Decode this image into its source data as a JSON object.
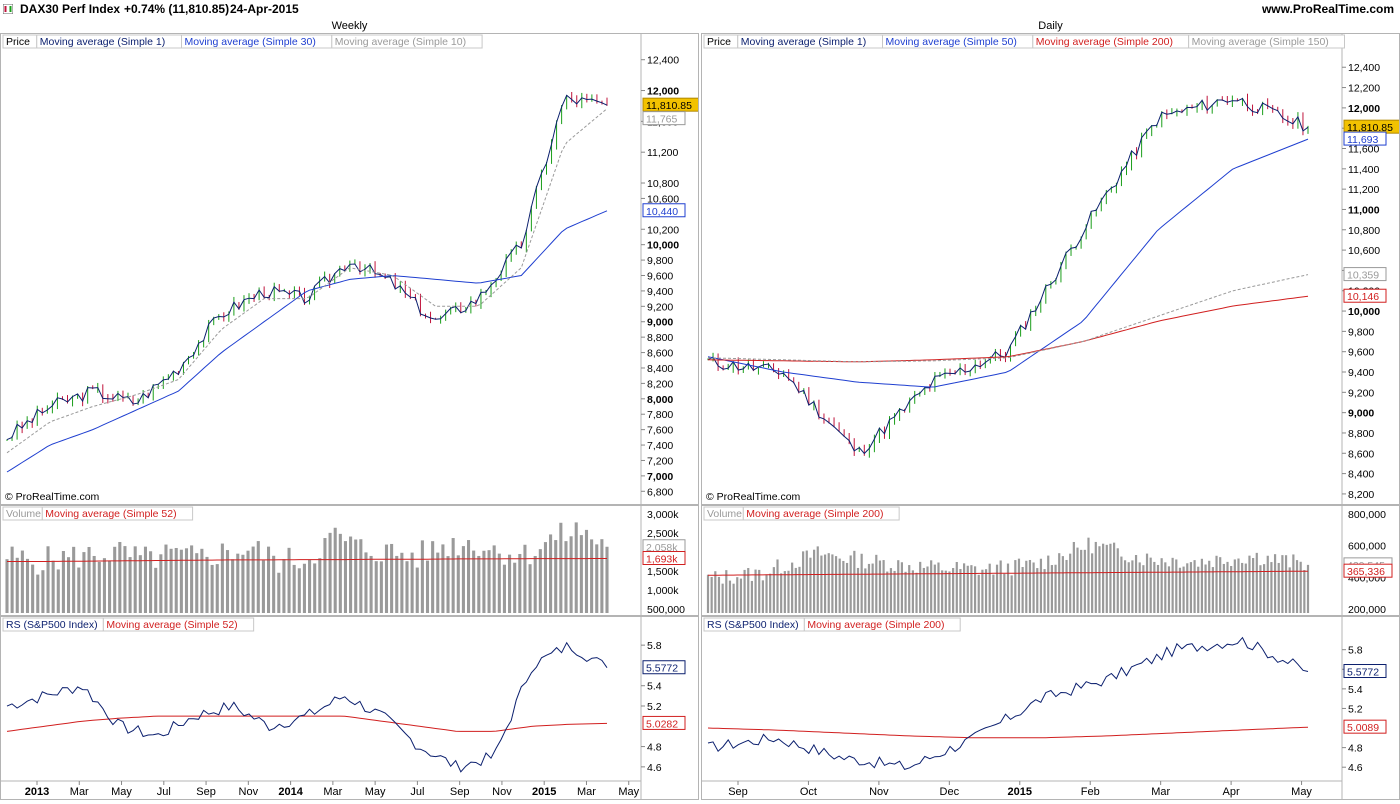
{
  "header": {
    "instrument": "DAX30 Perf Index",
    "change": "+0.74% (11,810.85)",
    "date": "24-Apr-2015",
    "website": "www.ProRealTime.com",
    "logo_icon": "prorealtime-logo-icon"
  },
  "colors": {
    "price_ma1": "#0b1f6e",
    "ma_blue": "#1f3fd0",
    "ma_red": "#d11f1f",
    "ma_grey": "#9a9a9a",
    "up_candle": "#1a9e1a",
    "down_candle": "#c0143c",
    "current_badge": "#f2c200",
    "volume_bar": "#9a9a9a",
    "rs_line": "#0b1f6e"
  },
  "charts": {
    "weekly": {
      "title": "Weekly",
      "watermark": "© ProRealTime.com",
      "price": {
        "legend": [
          {
            "label": "Price",
            "color": "#000000"
          },
          {
            "label": "Moving average (Simple 1)",
            "color": "#0b1f6e"
          },
          {
            "label": "Moving average (Simple 30)",
            "color": "#1f3fd0"
          },
          {
            "label": "Moving average (Simple 10)",
            "color": "#9a9a9a"
          }
        ],
        "ticks": [
          "12,400",
          "12,000",
          "11,600",
          "11,200",
          "10,800",
          "10,600",
          "10,200",
          "10,000",
          "9,800",
          "9,600",
          "9,400",
          "9,200",
          "9,000",
          "8,800",
          "8,600",
          "8,400",
          "8,200",
          "8,000",
          "7,800",
          "7,600",
          "7,400",
          "7,200",
          "7,000",
          "6,800"
        ],
        "ticks_bold": [
          "12,000",
          "10,000",
          "9,000",
          "8,000",
          "7,000"
        ],
        "current_label": "11,810.85",
        "ma_labels": [
          {
            "text": "11,765",
            "value": 11765,
            "color": "#9a9a9a"
          },
          {
            "text": "10,440",
            "value": 10440,
            "color": "#1f3fd0"
          }
        ]
      },
      "volume": {
        "legend": [
          {
            "label": "Volume",
            "color": "#9a9a9a"
          },
          {
            "label": "Moving average (Simple 52)",
            "color": "#d11f1f"
          }
        ],
        "ticks": [
          "3,000k",
          "2,500k",
          "2,000k",
          "1,500k",
          "1,000k",
          "500,000"
        ],
        "labels": [
          {
            "text": "2,058k",
            "value": 2058,
            "color": "#9a9a9a"
          },
          {
            "text": "1,693k",
            "value": 1693,
            "color": "#d11f1f"
          }
        ]
      },
      "rs": {
        "legend": [
          {
            "label": "RS (S&P500 Index)",
            "color": "#0b1f6e"
          },
          {
            "label": "Moving average (Simple 52)",
            "color": "#d11f1f"
          }
        ],
        "ticks": [
          "5.8",
          "5.4",
          "5.2",
          "4.8",
          "4.6"
        ],
        "labels": [
          {
            "text": "5.5772",
            "value": 5.5772,
            "color": "#0b1f6e"
          },
          {
            "text": "5.0282",
            "value": 5.0282,
            "color": "#d11f1f"
          }
        ]
      },
      "x_labels": [
        {
          "text": "2013",
          "bold": true
        },
        {
          "text": "Mar"
        },
        {
          "text": "May"
        },
        {
          "text": "Jul"
        },
        {
          "text": "Sep"
        },
        {
          "text": "Nov"
        },
        {
          "text": "2014",
          "bold": true
        },
        {
          "text": "Mar"
        },
        {
          "text": "May"
        },
        {
          "text": "Jul"
        },
        {
          "text": "Sep"
        },
        {
          "text": "Nov"
        },
        {
          "text": "2015",
          "bold": true
        },
        {
          "text": "Mar"
        },
        {
          "text": "May"
        }
      ]
    },
    "daily": {
      "title": "Daily",
      "watermark": "© ProRealTime.com",
      "price": {
        "legend": [
          {
            "label": "Price",
            "color": "#000000"
          },
          {
            "label": "Moving average (Simple 1)",
            "color": "#0b1f6e"
          },
          {
            "label": "Moving average (Simple 50)",
            "color": "#1f3fd0"
          },
          {
            "label": "Moving average (Simple 200)",
            "color": "#d11f1f"
          },
          {
            "label": "Moving average (Simple 150)",
            "color": "#9a9a9a"
          }
        ],
        "ticks": [
          "12,400",
          "12,200",
          "12,000",
          "11,800",
          "11,600",
          "11,400",
          "11,200",
          "11,000",
          "10,800",
          "10,600",
          "10,400",
          "10,200",
          "10,000",
          "9,800",
          "9,600",
          "9,400",
          "9,200",
          "9,000",
          "8,800",
          "8,600",
          "8,400",
          "8,200"
        ],
        "ticks_bold": [
          "12,000",
          "11,000",
          "10,000",
          "9,000"
        ],
        "current_label": "11,810.85",
        "ma_labels": [
          {
            "text": "11,693",
            "value": 11693,
            "color": "#1f3fd0"
          },
          {
            "text": "10,359",
            "value": 10359,
            "color": "#9a9a9a"
          },
          {
            "text": "10,146",
            "value": 10146,
            "color": "#d11f1f"
          }
        ]
      },
      "volume": {
        "legend": [
          {
            "label": "Volume",
            "color": "#9a9a9a"
          },
          {
            "label": "Moving average (Simple 200)",
            "color": "#d11f1f"
          }
        ],
        "ticks": [
          "800,000",
          "600,000",
          "400,000",
          "200,000"
        ],
        "labels": [
          {
            "text": "420,545",
            "value": 420545,
            "color": "#9a9a9a"
          },
          {
            "text": "365,336",
            "value": 365336,
            "color": "#d11f1f"
          }
        ]
      },
      "rs": {
        "legend": [
          {
            "label": "RS (S&P500 Index)",
            "color": "#0b1f6e"
          },
          {
            "label": "Moving average (Simple 200)",
            "color": "#d11f1f"
          }
        ],
        "ticks": [
          "5.8",
          "5.6",
          "5.4",
          "5.2",
          "4.8",
          "4.6"
        ],
        "labels": [
          {
            "text": "5.5772",
            "value": 5.5772,
            "color": "#0b1f6e"
          },
          {
            "text": "5.0089",
            "value": 5.0089,
            "color": "#d11f1f"
          }
        ]
      },
      "x_labels": [
        {
          "text": "Sep"
        },
        {
          "text": "Oct"
        },
        {
          "text": "Nov"
        },
        {
          "text": "Dec"
        },
        {
          "text": "2015",
          "bold": true
        },
        {
          "text": "Feb"
        },
        {
          "text": "Mar"
        },
        {
          "text": "Apr"
        },
        {
          "text": "May"
        }
      ]
    }
  },
  "chart_data": [
    {
      "type": "line",
      "title": "Weekly",
      "x": [
        "2013-01",
        "2013-03",
        "2013-05",
        "2013-07",
        "2013-09",
        "2013-11",
        "2014-01",
        "2014-03",
        "2014-05",
        "2014-07",
        "2014-09",
        "2014-11",
        "2015-01",
        "2015-03",
        "2015-04"
      ],
      "series": [
        {
          "name": "Moving average (Simple 1)",
          "values": [
            7500,
            7900,
            8100,
            7950,
            8400,
            9100,
            9400,
            9300,
            9800,
            9500,
            9000,
            9300,
            10000,
            11900,
            11810
          ]
        },
        {
          "name": "Moving average (Simple 30)",
          "values": [
            7050,
            7400,
            7600,
            7850,
            8100,
            8600,
            9000,
            9400,
            9550,
            9600,
            9550,
            9500,
            9600,
            10200,
            10440
          ]
        },
        {
          "name": "Moving average (Simple 10)",
          "values": [
            7300,
            7700,
            7900,
            8050,
            8250,
            8900,
            9300,
            9300,
            9700,
            9600,
            9200,
            9200,
            9700,
            11300,
            11765
          ]
        }
      ],
      "ylim": [
        6700,
        12500
      ]
    },
    {
      "type": "bar",
      "title": "Weekly Volume",
      "values": [
        1750,
        1600,
        1700,
        1800,
        1900,
        1650,
        1800,
        1700,
        1900,
        2000,
        1600,
        1700,
        2400,
        2000,
        1900,
        1750,
        2100,
        2200,
        1950,
        1800,
        2300,
        2600,
        2058
      ],
      "ma": [
        1600,
        1600,
        1610,
        1620,
        1630,
        1640,
        1650,
        1650,
        1660,
        1660,
        1670,
        1670,
        1680,
        1680,
        1690,
        1690,
        1693
      ],
      "ylim": [
        0,
        3200000
      ]
    },
    {
      "type": "line",
      "title": "Weekly RS (S&P500 Index)",
      "series": [
        {
          "name": "RS (S&P500 Index)",
          "values": [
            5.2,
            5.3,
            5.4,
            5.0,
            4.9,
            5.1,
            5.2,
            5.0,
            5.1,
            5.3,
            5.1,
            4.8,
            4.6,
            4.7,
            5.6,
            5.8,
            5.5772
          ]
        },
        {
          "name": "Moving average (Simple 52)",
          "values": [
            4.95,
            5.0,
            5.05,
            5.08,
            5.1,
            5.1,
            5.1,
            5.1,
            5.1,
            5.1,
            5.05,
            5.0,
            4.95,
            4.95,
            5.0,
            5.02,
            5.0282
          ]
        }
      ],
      "ylim": [
        4.5,
        5.9
      ]
    },
    {
      "type": "line",
      "title": "Daily",
      "x": [
        "2014-09",
        "2014-10",
        "2014-11",
        "2014-12",
        "2015-01",
        "2015-02",
        "2015-03",
        "2015-04",
        "2015-04-24"
      ],
      "series": [
        {
          "name": "Moving average (Simple 1)",
          "values": [
            9500,
            9400,
            8600,
            9300,
            9600,
            10800,
            11900,
            12100,
            11810
          ]
        },
        {
          "name": "Moving average (Simple 50)",
          "values": [
            9550,
            9400,
            9300,
            9250,
            9400,
            9900,
            10800,
            11400,
            11693
          ]
        },
        {
          "name": "Moving average (Simple 200)",
          "values": [
            9520,
            9510,
            9500,
            9520,
            9550,
            9700,
            9900,
            10050,
            10146
          ]
        },
        {
          "name": "Moving average (Simple 150)",
          "values": [
            9540,
            9520,
            9500,
            9510,
            9540,
            9700,
            9950,
            10200,
            10359
          ]
        }
      ],
      "ylim": [
        8150,
        12550
      ]
    },
    {
      "type": "bar",
      "title": "Daily Volume",
      "values": [
        300000,
        350000,
        520000,
        450000,
        400000,
        380000,
        420000,
        600000,
        480000,
        450000,
        500000,
        420545
      ],
      "ma": [
        330000,
        335000,
        340000,
        345000,
        350000,
        355000,
        360000,
        365336
      ],
      "ylim": [
        0,
        900000
      ]
    },
    {
      "type": "line",
      "title": "Daily RS (S&P500 Index)",
      "series": [
        {
          "name": "RS (S&P500 Index)",
          "values": [
            4.8,
            4.9,
            4.7,
            4.6,
            4.9,
            5.3,
            5.5,
            5.8,
            5.9,
            5.5772
          ]
        },
        {
          "name": "Moving average (Simple 200)",
          "values": [
            5.0,
            4.98,
            4.95,
            4.92,
            4.9,
            4.9,
            4.92,
            4.95,
            4.98,
            5.0089
          ]
        }
      ],
      "ylim": [
        4.5,
        5.95
      ]
    }
  ]
}
